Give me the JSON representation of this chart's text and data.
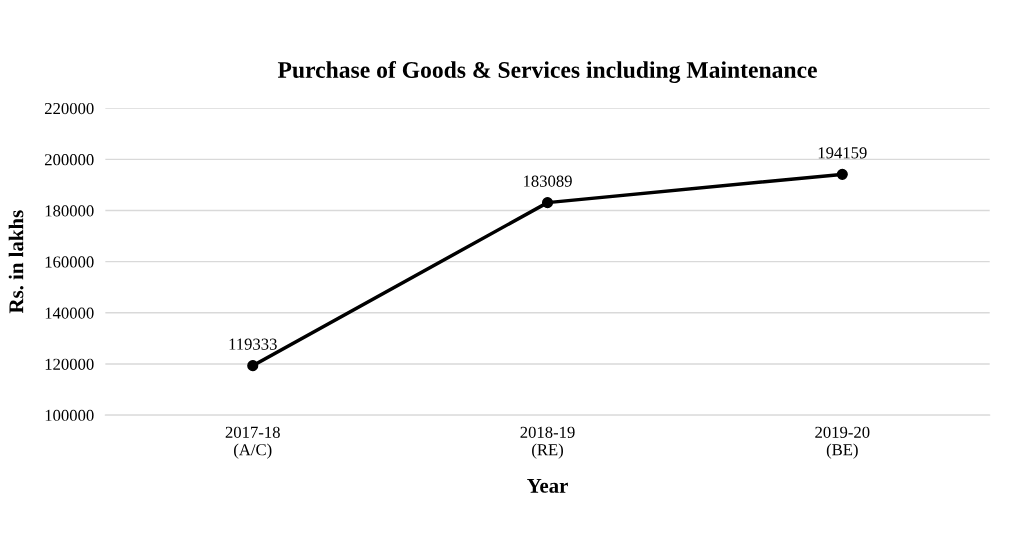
{
  "chart_data": {
    "type": "line",
    "title": "Purchase of Goods & Services including Maintenance",
    "xlabel": "Year",
    "ylabel": "Rs. in lakhs",
    "categories": [
      "2017-18\n(A/C)",
      "2018-19\n(RE)",
      "2019-20\n(BE)"
    ],
    "series": [
      {
        "color": "#000000",
        "values": [
          119333,
          183089,
          194159
        ]
      }
    ],
    "ylim": [
      100000,
      220000
    ],
    "yticks": [
      100000,
      120000,
      140000,
      160000,
      180000,
      200000,
      220000
    ],
    "grid": "y",
    "marker": "circle",
    "line_style": "solid",
    "data_labels": true
  }
}
